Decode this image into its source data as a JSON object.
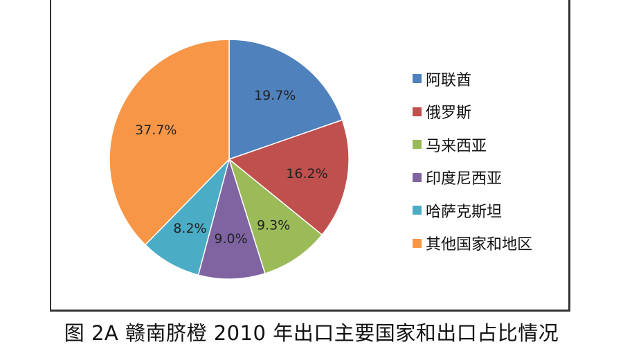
{
  "caption": "图 2A 赣南脐橙 2010 年出口主要国家和出口占比情况",
  "chart_data": {
    "type": "pie",
    "categories": [
      "阿联酋",
      "俄罗斯",
      "马来西亚",
      "印度尼西亚",
      "哈萨克斯坦",
      "其他国家和地区"
    ],
    "values": [
      19.7,
      16.2,
      9.3,
      9.0,
      8.2,
      37.7
    ],
    "labels": [
      "19.7%",
      "16.2%",
      "9.3%",
      "9.0%",
      "8.2%",
      "37.7%"
    ],
    "colors": [
      "#4f81bd",
      "#c0504d",
      "#9bbb59",
      "#8064a2",
      "#4bacc6",
      "#f79646"
    ],
    "start_angle": "12 o'clock",
    "direction": "clockwise",
    "legend": "right",
    "title": ""
  }
}
